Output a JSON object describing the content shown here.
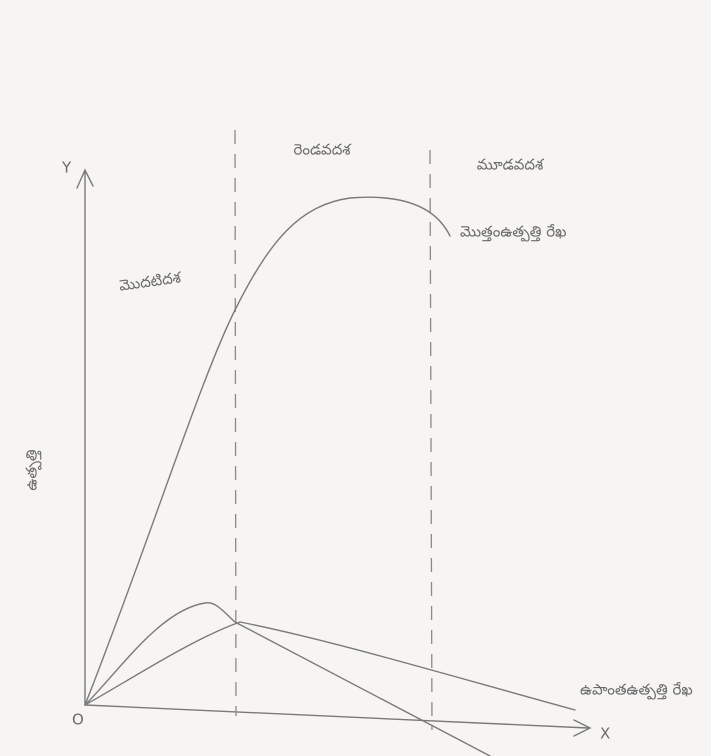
{
  "axes": {
    "y": "Y",
    "x": "X",
    "origin": "O",
    "y_label": "ఉత్పత్తి"
  },
  "stages": [
    "మొదటిదశ",
    "రెండవదశ",
    "మూడవదశ"
  ],
  "curves": {
    "total": "మొత్తంఉత్పత్తి రేఖ",
    "lower": "ఉపాంతఉత్పత్తి రేఖ"
  }
}
